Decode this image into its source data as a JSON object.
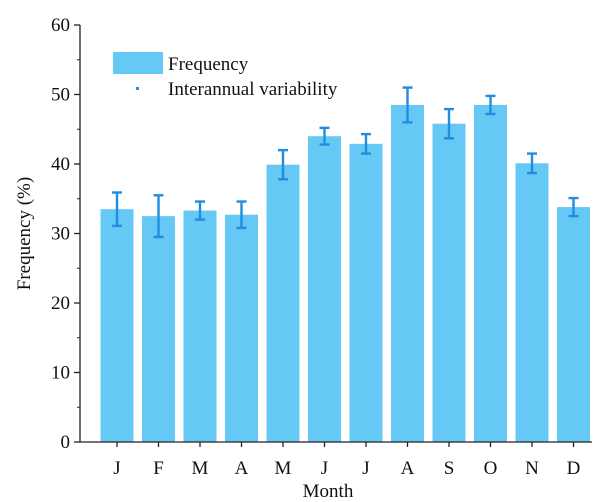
{
  "chart_data": {
    "type": "bar",
    "title": "",
    "xlabel": "Month",
    "ylabel": "Frequency (%)",
    "ylim": [
      0,
      60
    ],
    "yticks": [
      0,
      10,
      20,
      30,
      40,
      50,
      60
    ],
    "categories": [
      "J",
      "F",
      "M",
      "A",
      "M",
      "J",
      "J",
      "A",
      "S",
      "O",
      "N",
      "D"
    ],
    "series": [
      {
        "name": "Frequency",
        "values": [
          33.5,
          32.5,
          33.3,
          32.7,
          39.9,
          44.0,
          42.9,
          48.5,
          45.8,
          48.5,
          40.1,
          33.8
        ],
        "error": [
          2.4,
          3.0,
          1.3,
          1.9,
          2.1,
          1.2,
          1.4,
          2.5,
          2.1,
          1.3,
          1.4,
          1.3
        ]
      }
    ],
    "legend": {
      "position": "top-left",
      "entries": [
        {
          "label": "Frequency",
          "kind": "bar"
        },
        {
          "label": "Interannual variability",
          "kind": "errorbar"
        }
      ]
    },
    "grid": false,
    "colors": {
      "bar": "#66c8f5",
      "error": "#1f8ee0",
      "axis": "#222222"
    }
  }
}
